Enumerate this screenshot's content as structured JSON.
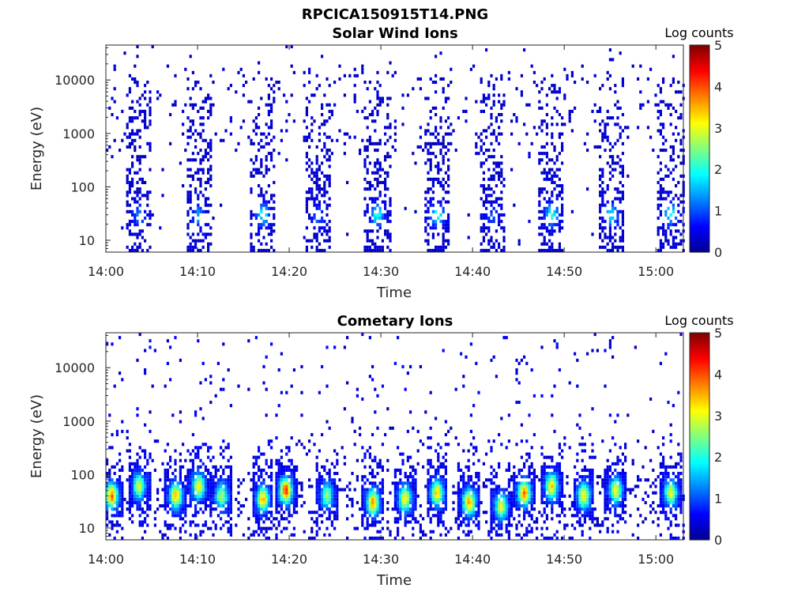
{
  "figure_title": "RPCICA150915T14.PNG",
  "colormap": [
    "#00008f",
    "#0000ff",
    "#0080ff",
    "#00ffff",
    "#80ff80",
    "#ffff00",
    "#ff8000",
    "#ff0000",
    "#800000"
  ],
  "chart_data": [
    {
      "type": "heatmap",
      "title": "Solar Wind Ions",
      "xlabel": "Time",
      "ylabel": "Energy (eV)",
      "y_scale": "log",
      "xlim": [
        "14:00",
        "15:03"
      ],
      "ylim": [
        6,
        45000
      ],
      "x_ticks": [
        "14:00",
        "14:10",
        "14:20",
        "14:30",
        "14:40",
        "14:50",
        "15:00"
      ],
      "y_ticks": [
        "10",
        "100",
        "1000",
        "10000"
      ],
      "colorbar": {
        "label": "Log counts",
        "range": [
          0,
          5
        ],
        "ticks": [
          "0",
          "1",
          "2",
          "3",
          "4",
          "5"
        ]
      },
      "bursts": [
        {
          "time": "14:03.5",
          "peak_energy": 28,
          "peak_log_counts": 1.0,
          "max_energy": 12000
        },
        {
          "time": "14:10",
          "peak_energy": 28,
          "peak_log_counts": 1.3,
          "max_energy": 15000
        },
        {
          "time": "14:17",
          "peak_energy": 30,
          "peak_log_counts": 1.8,
          "max_energy": 15000
        },
        {
          "time": "14:23",
          "peak_energy": 28,
          "peak_log_counts": 1.0,
          "max_energy": 15000
        },
        {
          "time": "14:29.5",
          "peak_energy": 30,
          "peak_log_counts": 1.9,
          "max_energy": 15000
        },
        {
          "time": "14:36",
          "peak_energy": 30,
          "peak_log_counts": 1.9,
          "max_energy": 15000
        },
        {
          "time": "14:42",
          "peak_energy": 28,
          "peak_log_counts": 0.9,
          "max_energy": 12000
        },
        {
          "time": "14:48.5",
          "peak_energy": 30,
          "peak_log_counts": 1.9,
          "max_energy": 15000
        },
        {
          "time": "14:55",
          "peak_energy": 30,
          "peak_log_counts": 1.7,
          "max_energy": 15000
        },
        {
          "time": "15:01.5",
          "peak_energy": 32,
          "peak_log_counts": 1.9,
          "max_energy": 15000
        }
      ]
    },
    {
      "type": "heatmap",
      "title": "Cometary Ions",
      "xlabel": "Time",
      "ylabel": "Energy (eV)",
      "y_scale": "log",
      "xlim": [
        "14:00",
        "15:03"
      ],
      "ylim": [
        6,
        45000
      ],
      "x_ticks": [
        "14:00",
        "14:10",
        "14:20",
        "14:30",
        "14:40",
        "14:50",
        "15:00"
      ],
      "y_ticks": [
        "10",
        "100",
        "1000",
        "10000"
      ],
      "colorbar": {
        "label": "Log counts",
        "range": [
          0,
          5
        ],
        "ticks": [
          "0",
          "1",
          "2",
          "3",
          "4",
          "5"
        ]
      },
      "bursts": [
        {
          "time": "14:00.5",
          "peak_energy": 40,
          "peak_log_counts": 3.7
        },
        {
          "time": "14:03.5",
          "peak_energy": 60,
          "peak_log_counts": 2.7
        },
        {
          "time": "14:07.5",
          "peak_energy": 40,
          "peak_log_counts": 3.3
        },
        {
          "time": "14:10",
          "peak_energy": 60,
          "peak_log_counts": 3.0
        },
        {
          "time": "14:12.5",
          "peak_energy": 40,
          "peak_log_counts": 2.6
        },
        {
          "time": "14:17",
          "peak_energy": 35,
          "peak_log_counts": 3.3
        },
        {
          "time": "14:19.5",
          "peak_energy": 50,
          "peak_log_counts": 4.0
        },
        {
          "time": "14:24",
          "peak_energy": 40,
          "peak_log_counts": 2.4
        },
        {
          "time": "14:29",
          "peak_energy": 30,
          "peak_log_counts": 3.5
        },
        {
          "time": "14:32.5",
          "peak_energy": 35,
          "peak_log_counts": 3.0
        },
        {
          "time": "14:36",
          "peak_energy": 45,
          "peak_log_counts": 3.2
        },
        {
          "time": "14:39.5",
          "peak_energy": 30,
          "peak_log_counts": 3.4
        },
        {
          "time": "14:43",
          "peak_energy": 25,
          "peak_log_counts": 2.8
        },
        {
          "time": "14:45.5",
          "peak_energy": 45,
          "peak_log_counts": 3.7
        },
        {
          "time": "14:48.5",
          "peak_energy": 60,
          "peak_log_counts": 3.2
        },
        {
          "time": "14:52",
          "peak_energy": 40,
          "peak_log_counts": 3.1
        },
        {
          "time": "14:55.5",
          "peak_energy": 50,
          "peak_log_counts": 2.9
        },
        {
          "time": "15:01.5",
          "peak_energy": 45,
          "peak_log_counts": 2.9
        }
      ]
    }
  ]
}
